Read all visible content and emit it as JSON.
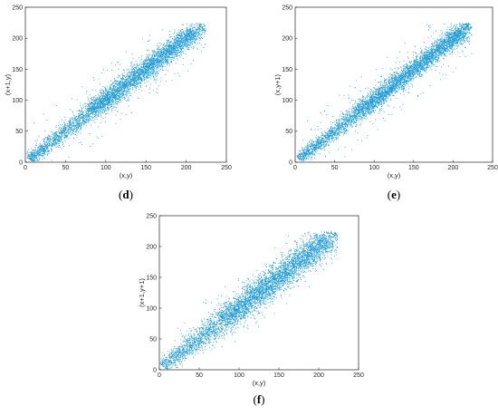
{
  "figure": {
    "point_color": "#1f9bd7",
    "axis_color": "#262626"
  },
  "chart_data": [
    {
      "type": "scatter",
      "panel_label": "d",
      "caption": {
        "open": "(",
        "letter": "d",
        "close": ")"
      },
      "xlabel": "(x,y)",
      "ylabel": "(x+1,y)",
      "xlim": [
        0,
        250
      ],
      "ylim": [
        0,
        250
      ],
      "xticks": [
        "0",
        "50",
        "100",
        "150",
        "200",
        "250"
      ],
      "yticks": [
        "0",
        "50",
        "100",
        "150",
        "200",
        "250"
      ],
      "grid": false,
      "data_range": [
        5,
        222
      ],
      "spread": 10,
      "approx_points": 5000,
      "description": "Dense correlation along y = x from about 5 to 222"
    },
    {
      "type": "scatter",
      "panel_label": "e",
      "caption": {
        "open": "(",
        "letter": "e",
        "close": ")"
      },
      "xlabel": "(x,y)",
      "ylabel": "(x,y+1)",
      "xlim": [
        0,
        250
      ],
      "ylim": [
        0,
        250
      ],
      "xticks": [
        "0",
        "50",
        "100",
        "150",
        "200",
        "250"
      ],
      "yticks": [
        "0",
        "50",
        "100",
        "150",
        "200",
        "250"
      ],
      "grid": false,
      "data_range": [
        5,
        222
      ],
      "spread": 9,
      "approx_points": 5000,
      "description": "Dense correlation along y = x from about 5 to 222"
    },
    {
      "type": "scatter",
      "panel_label": "f",
      "caption": {
        "open": "(",
        "letter": "f",
        "close": ")"
      },
      "xlabel": "(x,y)",
      "ylabel": "(x+1,y+1)",
      "xlim": [
        0,
        250
      ],
      "ylim": [
        0,
        250
      ],
      "xticks": [
        "0",
        "50",
        "100",
        "150",
        "200",
        "250"
      ],
      "yticks": [
        "0",
        "50",
        "100",
        "150",
        "200",
        "250"
      ],
      "grid": false,
      "data_range": [
        5,
        222
      ],
      "spread": 13,
      "approx_points": 5000,
      "description": "Correlation along y = x with wider spread, from about 5 to 222"
    }
  ]
}
